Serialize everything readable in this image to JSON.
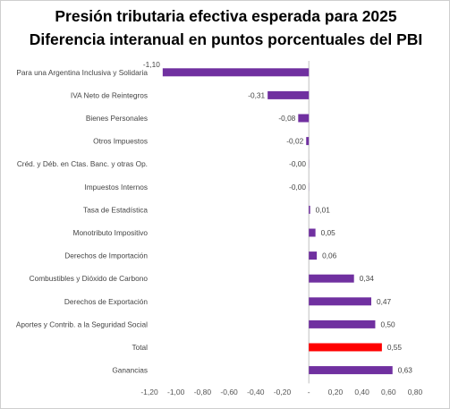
{
  "chart_data": {
    "type": "bar",
    "orientation": "horizontal",
    "title": "Presión tributaria efectiva esperada para 2025",
    "subtitle": "Diferencia interanual en puntos porcentuales del PBI",
    "categories": [
      "Para una Argentina Inclusiva y Solidaria",
      "IVA Neto de Reintegros",
      "Bienes Personales",
      "Otros Impuestos",
      "Créd. y Déb. en Ctas. Banc. y otras Op.",
      "Impuestos Internos",
      "Tasa de Estadística",
      "Monotributo Impositivo",
      "Derechos de Importación",
      "Combustibles y Dióxido de Carbono",
      "Derechos de Exportación",
      "Aportes y Contrib. a la Seguridad Social",
      "Total",
      "Ganancias"
    ],
    "values": [
      -1.1,
      -0.31,
      -0.08,
      -0.02,
      -0.001,
      -0.001,
      0.01,
      0.05,
      0.06,
      0.34,
      0.47,
      0.5,
      0.55,
      0.63
    ],
    "value_labels": [
      "-1,10",
      "-0,31",
      "-0,08",
      "-0,02",
      "-0,00",
      "-0,00",
      "0,01",
      "0,05",
      "0,06",
      "0,34",
      "0,47",
      "0,50",
      "0,55",
      "0,63"
    ],
    "highlight": [
      "Total"
    ],
    "xlim": [
      -1.2,
      0.8
    ],
    "xticks": [
      "-1,20",
      "-1,00",
      "-0,80",
      "-0,60",
      "-0,40",
      "-0,20",
      "-",
      "0,20",
      "0,40",
      "0,60",
      "0,80"
    ],
    "grid": false,
    "colors": {
      "bar": "#7030a0",
      "highlight": "#ff0000",
      "axis": "#bfbfbf"
    }
  }
}
